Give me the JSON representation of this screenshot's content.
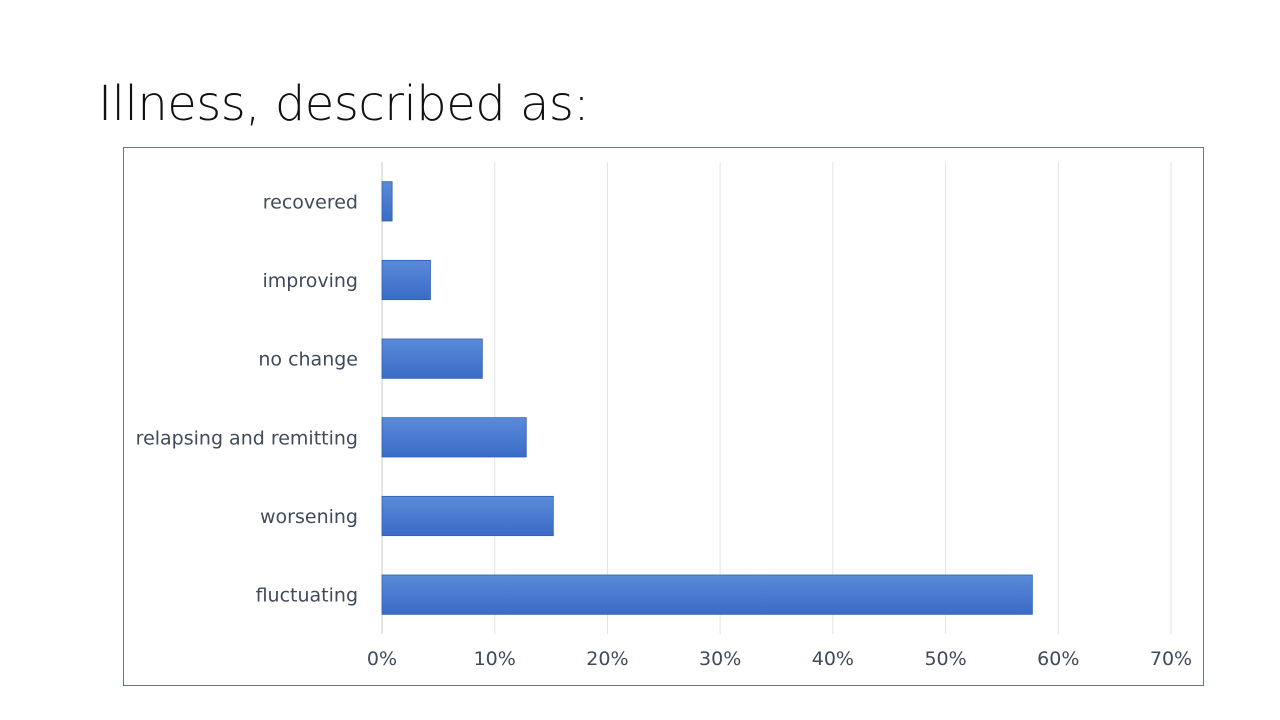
{
  "slide": {
    "title": "Illness, described as:"
  },
  "chart_data": {
    "type": "bar",
    "orientation": "horizontal",
    "title": "",
    "xlabel": "",
    "ylabel": "",
    "categories": [
      "recovered",
      "improving",
      "no change",
      "relapsing and remitting",
      "worsening",
      "fluctuating"
    ],
    "values": [
      0.9,
      4.3,
      8.9,
      12.8,
      15.2,
      57.7
    ],
    "value_unit": "%",
    "xlim": [
      0,
      70
    ],
    "xticks": [
      0,
      10,
      20,
      30,
      40,
      50,
      60,
      70
    ],
    "xtick_labels": [
      "0%",
      "10%",
      "20%",
      "30%",
      "40%",
      "50%",
      "60%",
      "70%"
    ],
    "grid": true,
    "legend": "none",
    "bar_color": "#3a6cc7",
    "bar_color_light": "#5b8ad8",
    "grid_color": "#e3e3e3"
  }
}
